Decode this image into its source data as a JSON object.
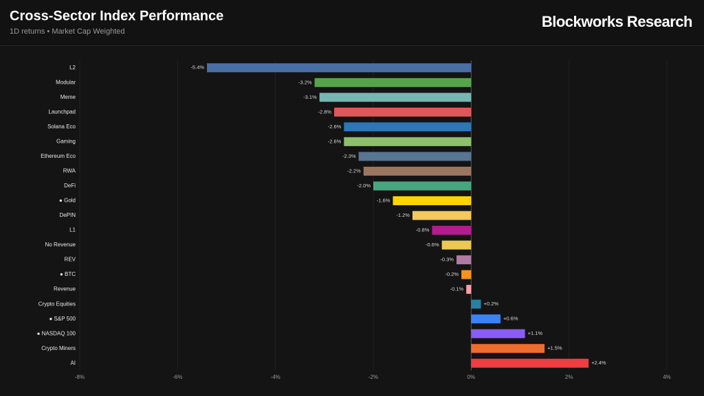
{
  "chart_data": {
    "type": "bar",
    "orientation": "horizontal",
    "title": "Cross-Sector Index Performance",
    "subtitle": "1D returns • Market Cap Weighted",
    "brand": "Blockworks Research",
    "categories": [
      "L2",
      "Modular",
      "Meme",
      "Launchpad",
      "Solana Eco",
      "Gaming",
      "Ethereum Eco",
      "RWA",
      "DeFi",
      "● Gold",
      "DePIN",
      "L1",
      "No Revenue",
      "REV",
      "● BTC",
      "Revenue",
      "Crypto Equities",
      "● S&P 500",
      "● NASDAQ 100",
      "Crypto Miners",
      "AI"
    ],
    "values": [
      -5.4,
      -3.2,
      -3.1,
      -2.8,
      -2.6,
      -2.6,
      -2.3,
      -2.2,
      -2.0,
      -1.6,
      -1.2,
      -0.8,
      -0.6,
      -0.3,
      -0.2,
      -0.1,
      0.2,
      0.6,
      1.1,
      1.5,
      2.4
    ],
    "value_labels": [
      "-5.4%",
      "-3.2%",
      "-3.1%",
      "-2.8%",
      "-2.6%",
      "-2.6%",
      "-2.3%",
      "-2.2%",
      "-2.0%",
      "-1.6%",
      "-1.2%",
      "-0.8%",
      "-0.6%",
      "-0.3%",
      "-0.2%",
      "-0.1%",
      "+0.2%",
      "+0.6%",
      "+1.1%",
      "+1.5%",
      "+2.4%"
    ],
    "colors": [
      "#4a6fa5",
      "#57a34b",
      "#76b7b2",
      "#e15759",
      "#2b77b8",
      "#8cc06b",
      "#5a7493",
      "#9c7561",
      "#47a67f",
      "#ffd400",
      "#f5c85a",
      "#b31c8c",
      "#eac853",
      "#b07aa1",
      "#f7931a",
      "#ff9da7",
      "#2a80a0",
      "#3b82f6",
      "#8b5cf6",
      "#ef6c2f",
      "#ef3e42"
    ],
    "xlim": [
      -8,
      4
    ],
    "xticks": [
      {
        "value": -8,
        "label": "-8%"
      },
      {
        "value": -6,
        "label": "-6%"
      },
      {
        "value": -4,
        "label": "-4%"
      },
      {
        "value": -2,
        "label": "-2%"
      },
      {
        "value": 0,
        "label": "0%"
      },
      {
        "value": 2,
        "label": "2%"
      },
      {
        "value": 4,
        "label": "4%"
      }
    ],
    "grid": true
  }
}
